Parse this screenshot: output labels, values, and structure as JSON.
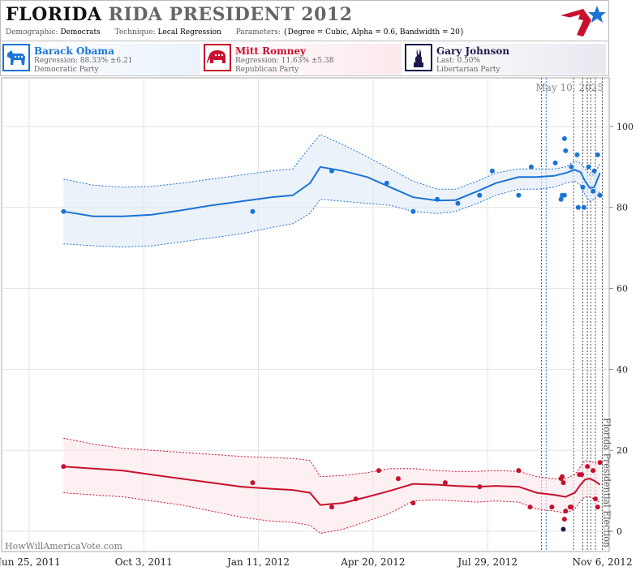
{
  "header": {
    "title_state": "FLORIDA",
    "title_office": "RIDA PRESIDENT 2012",
    "demographic_label": "Demographic:",
    "demographic_value": "Democrats",
    "technique_label": "Technique:",
    "technique_value": "Local Regression",
    "parameters_label": "Parameters:",
    "parameters_value": "{Degree = Cubic, Alpha = 0.6, Bandwidth = 20}"
  },
  "candidates": [
    {
      "name": "Barack Obama",
      "line2": "Regression: 88.33% ±6.21",
      "line3": "Democratic Party",
      "color": "#1a74d6",
      "icon": "donkey-icon"
    },
    {
      "name": "Mitt Romney",
      "line2": "Regression: 11.63% ±5.38",
      "line3": "Republican Party",
      "color": "#c8102e",
      "icon": "elephant-icon"
    },
    {
      "name": "Gary Johnson",
      "line2": "Last: 0.50%",
      "line3": "Libertarian Party",
      "color": "#1c1a4d",
      "icon": "liberty-statue-icon"
    }
  ],
  "watermark": "HowWillAmericaVote.com",
  "chart_data": {
    "type": "line",
    "x_tick_labels": [
      "Jun 25, 2011",
      "Oct 3, 2011",
      "Jan 11, 2012",
      "Apr 20, 2012",
      "Jul 29, 2012",
      "Nov 6, 2012"
    ],
    "x_ticks": [
      "2011-06-25",
      "2011-10-03",
      "2012-01-11",
      "2012-04-20",
      "2012-07-29",
      "2012-11-06"
    ],
    "x_range": [
      "2011-06-01",
      "2012-11-12"
    ],
    "y_ticks": [
      0,
      20,
      40,
      60,
      80,
      100
    ],
    "ylim": [
      -5,
      112
    ],
    "grid": true,
    "date_label": "May 10, 2025",
    "event_label": "Florida Presidential Election",
    "event_date": "2012-11-06",
    "dem_vlines": [
      "2012-09-18"
    ],
    "rep_vlines": [
      "2012-09-14"
    ],
    "gray_vlines": [
      "2012-10-12",
      "2012-10-20",
      "2012-10-24",
      "2012-10-27",
      "2012-10-31"
    ],
    "series": [
      {
        "name": "Barack Obama",
        "color": "#1a74d6",
        "band_color": "#dfe9f5",
        "trend_x": [
          "2011-07-25",
          "2011-08-20",
          "2011-09-15",
          "2011-10-10",
          "2011-11-05",
          "2011-12-01",
          "2011-12-27",
          "2012-01-22",
          "2012-02-10",
          "2012-02-25",
          "2012-03-05",
          "2012-03-25",
          "2012-04-15",
          "2012-05-05",
          "2012-05-25",
          "2012-06-15",
          "2012-07-01",
          "2012-07-20",
          "2012-08-05",
          "2012-08-25",
          "2012-09-10",
          "2012-09-25",
          "2012-10-05",
          "2012-10-13",
          "2012-10-18",
          "2012-10-22",
          "2012-10-26",
          "2012-10-30",
          "2012-11-04"
        ],
        "trend_y": [
          79,
          77.8,
          77.8,
          78.2,
          79.3,
          80.5,
          81.5,
          82.5,
          83,
          86,
          90,
          89,
          87.5,
          85,
          82.5,
          81.7,
          81.8,
          84,
          86,
          87.5,
          87.5,
          87.8,
          88.5,
          89.3,
          88.7,
          86.5,
          84.8,
          85,
          88.5
        ],
        "upper_y": [
          87,
          85.5,
          85,
          85.2,
          86,
          87,
          88,
          89,
          89.5,
          95,
          98,
          95.5,
          92.5,
          89.5,
          86.5,
          84.5,
          84.5,
          86.5,
          88.5,
          89.5,
          89.5,
          89.5,
          90,
          91.5,
          91,
          89.5,
          88,
          88,
          91
        ],
        "lower_y": [
          71,
          70.5,
          70.2,
          70.5,
          71.5,
          72.5,
          73.5,
          75,
          76,
          78.5,
          82,
          81.5,
          81,
          80.5,
          79,
          78.5,
          79,
          81,
          83,
          84.5,
          84.5,
          85,
          86,
          86.5,
          85.5,
          83,
          81.5,
          82,
          84
        ],
        "points": [
          {
            "date": "2011-07-25",
            "value": 79
          },
          {
            "date": "2012-01-06",
            "value": 79
          },
          {
            "date": "2012-03-15",
            "value": 89
          },
          {
            "date": "2012-05-02",
            "value": 86
          },
          {
            "date": "2012-05-25",
            "value": 79
          },
          {
            "date": "2012-06-15",
            "value": 82
          },
          {
            "date": "2012-07-03",
            "value": 81
          },
          {
            "date": "2012-07-22",
            "value": 83
          },
          {
            "date": "2012-08-02",
            "value": 89
          },
          {
            "date": "2012-08-25",
            "value": 83
          },
          {
            "date": "2012-09-05",
            "value": 90
          },
          {
            "date": "2012-09-26",
            "value": 91
          },
          {
            "date": "2012-10-01",
            "value": 82
          },
          {
            "date": "2012-10-02",
            "value": 83
          },
          {
            "date": "2012-10-04",
            "value": 83
          },
          {
            "date": "2012-10-04",
            "value": 97
          },
          {
            "date": "2012-10-05",
            "value": 94
          },
          {
            "date": "2012-10-10",
            "value": 90
          },
          {
            "date": "2012-10-15",
            "value": 93
          },
          {
            "date": "2012-10-16",
            "value": 80
          },
          {
            "date": "2012-10-20",
            "value": 85
          },
          {
            "date": "2012-10-21",
            "value": 80
          },
          {
            "date": "2012-10-25",
            "value": 90
          },
          {
            "date": "2012-10-29",
            "value": 84
          },
          {
            "date": "2012-10-30",
            "value": 89
          },
          {
            "date": "2012-11-02",
            "value": 93
          },
          {
            "date": "2012-11-04",
            "value": 83
          }
        ]
      },
      {
        "name": "Mitt Romney",
        "color": "#c8102e",
        "band_color": "#fbe6ea",
        "trend_x": [
          "2011-07-25",
          "2011-08-20",
          "2011-09-15",
          "2011-10-10",
          "2011-11-05",
          "2011-12-01",
          "2011-12-27",
          "2012-01-22",
          "2012-02-10",
          "2012-02-25",
          "2012-03-05",
          "2012-03-25",
          "2012-04-15",
          "2012-05-05",
          "2012-05-25",
          "2012-06-15",
          "2012-07-01",
          "2012-07-20",
          "2012-08-05",
          "2012-08-25",
          "2012-09-10",
          "2012-09-25",
          "2012-10-05",
          "2012-10-13",
          "2012-10-18",
          "2012-10-22",
          "2012-10-26",
          "2012-10-30",
          "2012-11-04"
        ],
        "trend_y": [
          16,
          15.5,
          15,
          14,
          13,
          12,
          11,
          10.5,
          10.2,
          9.5,
          6.5,
          7,
          8.5,
          10,
          11.7,
          11.5,
          11.2,
          11,
          11.2,
          11,
          9.5,
          9,
          8.5,
          9.5,
          11.5,
          12.8,
          13,
          12.5,
          11.5
        ],
        "upper_y": [
          23,
          21.5,
          20.5,
          20,
          19.5,
          19,
          18.5,
          18.2,
          18,
          17.5,
          13.5,
          13.8,
          14.5,
          15.5,
          15.5,
          15,
          14.8,
          14.8,
          15,
          14.8,
          13.5,
          13,
          13,
          14,
          16,
          17.5,
          17.2,
          17,
          16.5
        ],
        "lower_y": [
          9.5,
          9,
          8.5,
          7.5,
          6.5,
          5,
          3.5,
          2.5,
          2.2,
          1.5,
          -0.5,
          0.5,
          2.5,
          4.5,
          7.5,
          7.8,
          7.5,
          7.2,
          7.5,
          7.2,
          5.5,
          5,
          4.5,
          5.5,
          7.5,
          8.5,
          8.5,
          8,
          7
        ]
      },
      {
        "name": "Gary Johnson",
        "color": "#1c1a4d",
        "points": [
          {
            "date": "2012-10-03",
            "value": 0.5
          }
        ]
      }
    ],
    "romney_points": [
      {
        "date": "2011-07-25",
        "value": 16
      },
      {
        "date": "2012-01-06",
        "value": 12
      },
      {
        "date": "2012-03-15",
        "value": 6
      },
      {
        "date": "2012-04-05",
        "value": 8
      },
      {
        "date": "2012-04-25",
        "value": 15
      },
      {
        "date": "2012-05-12",
        "value": 13
      },
      {
        "date": "2012-05-25",
        "value": 7
      },
      {
        "date": "2012-06-22",
        "value": 12
      },
      {
        "date": "2012-07-22",
        "value": 11
      },
      {
        "date": "2012-08-25",
        "value": 15
      },
      {
        "date": "2012-09-04",
        "value": 6
      },
      {
        "date": "2012-09-23",
        "value": 6
      },
      {
        "date": "2012-10-01",
        "value": 13
      },
      {
        "date": "2012-10-02",
        "value": 13.5
      },
      {
        "date": "2012-10-03",
        "value": 12
      },
      {
        "date": "2012-10-04",
        "value": 3
      },
      {
        "date": "2012-10-05",
        "value": 5
      },
      {
        "date": "2012-10-09",
        "value": 6
      },
      {
        "date": "2012-10-10",
        "value": 6
      },
      {
        "date": "2012-10-17",
        "value": 14
      },
      {
        "date": "2012-10-19",
        "value": 14
      },
      {
        "date": "2012-10-24",
        "value": 16
      },
      {
        "date": "2012-10-29",
        "value": 15
      },
      {
        "date": "2012-10-31",
        "value": 8
      },
      {
        "date": "2012-11-02",
        "value": 6
      },
      {
        "date": "2012-11-04",
        "value": 17
      }
    ]
  }
}
